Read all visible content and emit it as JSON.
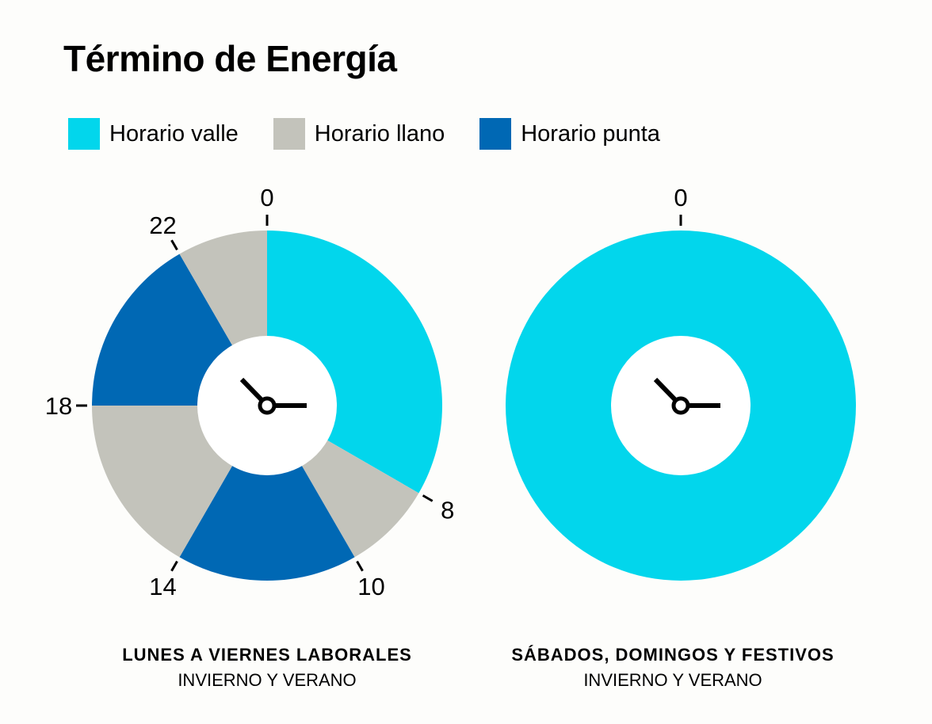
{
  "chart_data": {
    "type": "pie",
    "title": "Término de Energía",
    "legend_placement": "top",
    "legend": [
      {
        "name": "Horario valle",
        "color": "#02d6ec"
      },
      {
        "name": "Horario llano",
        "color": "#c3c3bb"
      },
      {
        "name": "Horario punta",
        "color": "#0068b4"
      }
    ],
    "charts": [
      {
        "caption_title": "LUNES A VIERNES LABORALES",
        "caption_subtitle": "INVIERNO Y VERANO",
        "hour_ticks": [
          0,
          8,
          10,
          14,
          18,
          22
        ],
        "segments": [
          {
            "from": 0,
            "to": 8,
            "series": "Horario valle"
          },
          {
            "from": 8,
            "to": 10,
            "series": "Horario llano"
          },
          {
            "from": 10,
            "to": 14,
            "series": "Horario punta"
          },
          {
            "from": 14,
            "to": 18,
            "series": "Horario llano"
          },
          {
            "from": 18,
            "to": 22,
            "series": "Horario punta"
          },
          {
            "from": 22,
            "to": 24,
            "series": "Horario llano"
          }
        ]
      },
      {
        "caption_title": "SÁBADOS, DOMINGOS Y FESTIVOS",
        "caption_subtitle": "INVIERNO Y VERANO",
        "hour_ticks": [
          0
        ],
        "segments": [
          {
            "from": 0,
            "to": 24,
            "series": "Horario valle"
          }
        ]
      }
    ]
  }
}
